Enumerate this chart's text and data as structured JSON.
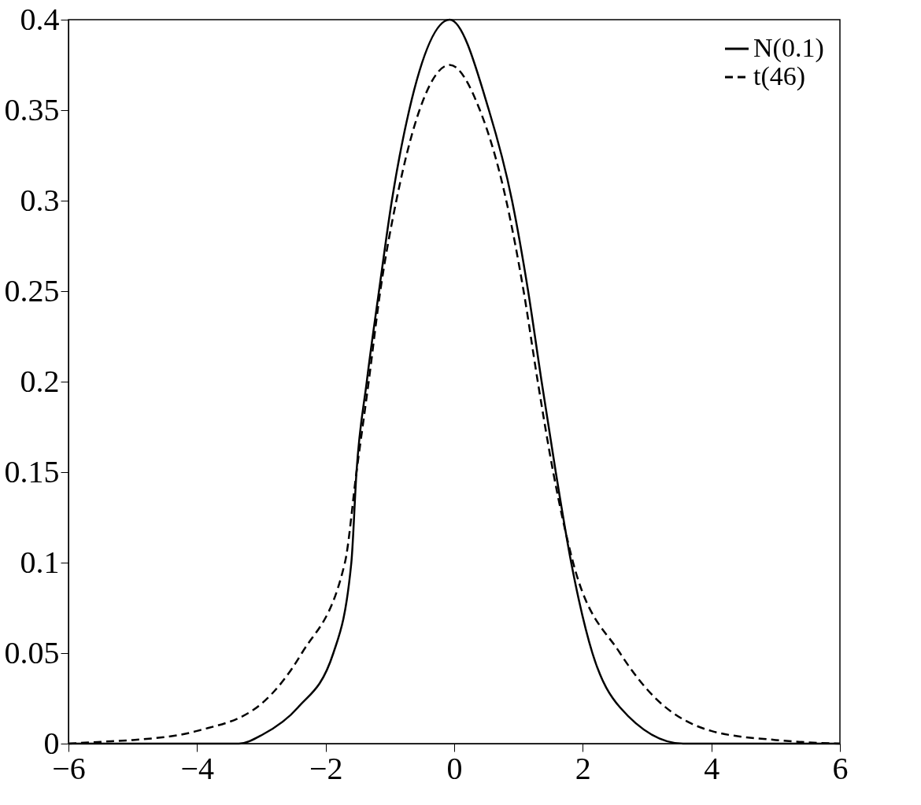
{
  "chart_data": {
    "type": "line",
    "xlim": [
      -6,
      6
    ],
    "ylim": [
      0,
      0.4
    ],
    "xticks": [
      {
        "value": -6,
        "label": "−6"
      },
      {
        "value": -4,
        "label": "−4"
      },
      {
        "value": -2,
        "label": "−2"
      },
      0,
      2,
      4,
      6
    ],
    "yticks": [
      0,
      0.05,
      0.1,
      0.15,
      0.2,
      0.25,
      0.3,
      0.35,
      0.4
    ],
    "grid": false,
    "legend": "top right",
    "series": [
      {
        "name": "N(0.1)",
        "color": "#000000",
        "line_style": "solid",
        "x": [
          -6,
          -3.35,
          -2.98,
          -2.43,
          -1.88,
          -1.6,
          -1.52,
          -1.36,
          -1.17,
          -0.97,
          -0.7,
          -0.07,
          0.54,
          0.9,
          1.15,
          1.36,
          1.58,
          1.82,
          2.15,
          2.58,
          3.56,
          6
        ],
        "values": [
          0,
          0,
          0.005,
          0.02,
          0.05,
          0.1,
          0.15,
          0.2,
          0.25,
          0.3,
          0.35,
          0.4,
          0.35,
          0.3,
          0.25,
          0.2,
          0.15,
          0.1,
          0.05,
          0.02,
          0,
          0
        ]
      },
      {
        "name": "t(46)",
        "color": "#000000",
        "line_style": "dashed",
        "x": [
          -6,
          -5.5,
          -5,
          -4,
          -3,
          -2.37,
          -1.7,
          -1.52,
          -1.33,
          -1.15,
          -0.9,
          -0.54,
          -0.07,
          0.4,
          0.81,
          1.08,
          1.3,
          1.54,
          1.85,
          2.58,
          3,
          4,
          5,
          6
        ],
        "values": [
          0,
          0.001,
          0.002,
          0.007,
          0.022,
          0.05,
          0.1,
          0.15,
          0.2,
          0.25,
          0.3,
          0.35,
          0.375,
          0.35,
          0.3,
          0.25,
          0.2,
          0.15,
          0.1,
          0.05,
          0.03,
          0.007,
          0.002,
          0
        ]
      }
    ]
  }
}
